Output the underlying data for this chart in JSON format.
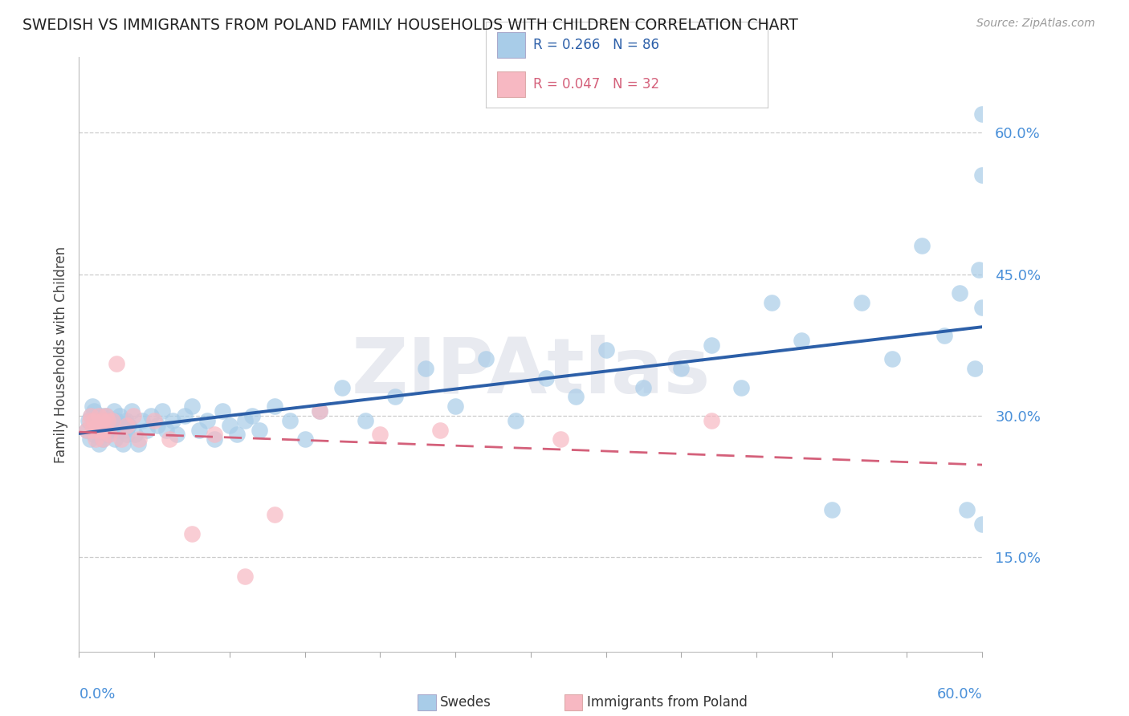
{
  "title": "SWEDISH VS IMMIGRANTS FROM POLAND FAMILY HOUSEHOLDS WITH CHILDREN CORRELATION CHART",
  "source": "Source: ZipAtlas.com",
  "ylabel": "Family Households with Children",
  "xlim": [
    0.0,
    0.6
  ],
  "ylim": [
    0.05,
    0.68
  ],
  "yticks": [
    0.15,
    0.3,
    0.45,
    0.6
  ],
  "ytick_labels": [
    "15.0%",
    "30.0%",
    "45.0%",
    "60.0%"
  ],
  "blue_color": "#a8cce8",
  "pink_color": "#f7b8c2",
  "trend_blue": "#2c5fa8",
  "trend_pink": "#d4607a",
  "watermark": "ZIPAtlas",
  "label_blue": "Swedes",
  "label_pink": "Immigrants from Poland",
  "legend_line1": "R = 0.266   N = 86",
  "legend_line2": "R = 0.047   N = 32",
  "blue_x": [
    0.005,
    0.006,
    0.007,
    0.008,
    0.009,
    0.01,
    0.01,
    0.011,
    0.012,
    0.013,
    0.014,
    0.015,
    0.015,
    0.016,
    0.017,
    0.018,
    0.019,
    0.02,
    0.021,
    0.022,
    0.023,
    0.024,
    0.025,
    0.026,
    0.027,
    0.028,
    0.029,
    0.03,
    0.031,
    0.032,
    0.033,
    0.035,
    0.037,
    0.039,
    0.042,
    0.045,
    0.048,
    0.052,
    0.055,
    0.058,
    0.062,
    0.065,
    0.07,
    0.075,
    0.08,
    0.085,
    0.09,
    0.095,
    0.1,
    0.105,
    0.11,
    0.115,
    0.12,
    0.13,
    0.14,
    0.15,
    0.16,
    0.175,
    0.19,
    0.21,
    0.23,
    0.25,
    0.27,
    0.29,
    0.31,
    0.33,
    0.35,
    0.375,
    0.4,
    0.42,
    0.44,
    0.46,
    0.48,
    0.5,
    0.52,
    0.54,
    0.56,
    0.575,
    0.585,
    0.59,
    0.595,
    0.598,
    0.6,
    0.6,
    0.6,
    0.6
  ],
  "blue_y": [
    0.285,
    0.295,
    0.275,
    0.3,
    0.31,
    0.28,
    0.305,
    0.29,
    0.285,
    0.27,
    0.295,
    0.285,
    0.3,
    0.275,
    0.29,
    0.3,
    0.28,
    0.295,
    0.285,
    0.29,
    0.305,
    0.275,
    0.295,
    0.285,
    0.3,
    0.29,
    0.27,
    0.285,
    0.295,
    0.28,
    0.29,
    0.305,
    0.28,
    0.27,
    0.295,
    0.285,
    0.3,
    0.29,
    0.305,
    0.285,
    0.295,
    0.28,
    0.3,
    0.31,
    0.285,
    0.295,
    0.275,
    0.305,
    0.29,
    0.28,
    0.295,
    0.3,
    0.285,
    0.31,
    0.295,
    0.275,
    0.305,
    0.33,
    0.295,
    0.32,
    0.35,
    0.31,
    0.36,
    0.295,
    0.34,
    0.32,
    0.37,
    0.33,
    0.35,
    0.375,
    0.33,
    0.42,
    0.38,
    0.2,
    0.42,
    0.36,
    0.48,
    0.385,
    0.43,
    0.2,
    0.35,
    0.455,
    0.555,
    0.415,
    0.62,
    0.185
  ],
  "pink_x": [
    0.005,
    0.007,
    0.008,
    0.009,
    0.01,
    0.011,
    0.012,
    0.013,
    0.014,
    0.015,
    0.016,
    0.017,
    0.018,
    0.019,
    0.02,
    0.022,
    0.025,
    0.028,
    0.032,
    0.036,
    0.04,
    0.05,
    0.06,
    0.075,
    0.09,
    0.11,
    0.13,
    0.16,
    0.2,
    0.24,
    0.32,
    0.42
  ],
  "pink_y": [
    0.285,
    0.295,
    0.3,
    0.285,
    0.295,
    0.275,
    0.29,
    0.3,
    0.285,
    0.295,
    0.275,
    0.285,
    0.3,
    0.295,
    0.28,
    0.295,
    0.355,
    0.275,
    0.29,
    0.3,
    0.275,
    0.295,
    0.275,
    0.175,
    0.28,
    0.13,
    0.195,
    0.305,
    0.28,
    0.285,
    0.275,
    0.295
  ]
}
